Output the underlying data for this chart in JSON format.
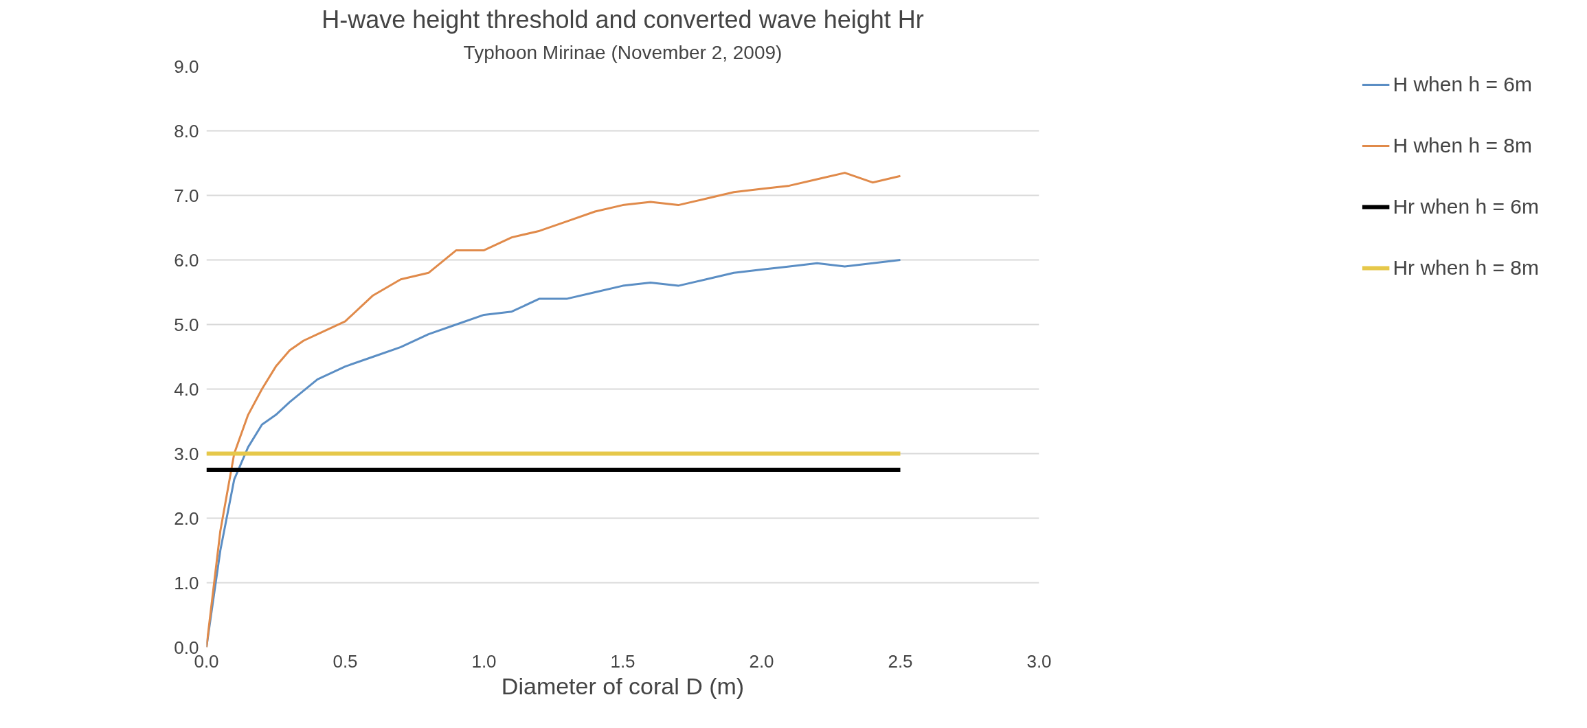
{
  "chart_data": {
    "type": "line",
    "title": "H-wave height threshold and converted wave height Hr",
    "subtitle": "Typhoon Mirinae (November 2, 2009)",
    "xlabel": "Diameter of coral D (m)",
    "xlim": [
      0,
      3
    ],
    "xticks": [
      {
        "value": 0,
        "label": "0.0"
      },
      {
        "value": 0.5,
        "label": "0.5"
      },
      {
        "value": 1,
        "label": "1.0"
      },
      {
        "value": 1.5,
        "label": "1.5"
      },
      {
        "value": 2,
        "label": "2.0"
      },
      {
        "value": 2.5,
        "label": "2.5"
      },
      {
        "value": 3,
        "label": "3.0"
      }
    ],
    "ylim": [
      0,
      9
    ],
    "yticks": [
      {
        "value": 0,
        "label": "0.0"
      },
      {
        "value": 1,
        "label": "1.0"
      },
      {
        "value": 2,
        "label": "2.0"
      },
      {
        "value": 3,
        "label": "3.0"
      },
      {
        "value": 4,
        "label": "4.0"
      },
      {
        "value": 5,
        "label": "5.0"
      },
      {
        "value": 6,
        "label": "6.0"
      },
      {
        "value": 7,
        "label": "7.0"
      },
      {
        "value": 8,
        "label": "8.0"
      },
      {
        "value": 9,
        "label": "9.0"
      }
    ],
    "grid": "y",
    "legend": "right",
    "marker": "none",
    "series": [
      {
        "name": "H when h = 6m",
        "color": "#5b8ec4",
        "x": [
          0,
          0.05,
          0.1,
          0.15,
          0.2,
          0.25,
          0.3,
          0.4,
          0.5,
          0.6,
          0.7,
          0.8,
          0.9,
          1.0,
          1.1,
          1.2,
          1.3,
          1.4,
          1.5,
          1.6,
          1.7,
          1.8,
          1.9,
          2.0,
          2.1,
          2.2,
          2.3,
          2.4,
          2.5
        ],
        "values": [
          0,
          1.5,
          2.6,
          3.1,
          3.45,
          3.6,
          3.8,
          4.15,
          4.35,
          4.5,
          4.65,
          4.85,
          5.0,
          5.15,
          5.2,
          5.4,
          5.4,
          5.5,
          5.6,
          5.65,
          5.6,
          5.7,
          5.8,
          5.85,
          5.9,
          5.95,
          5.9,
          5.95,
          6.0
        ]
      },
      {
        "name": "H when h = 8m",
        "color": "#e08a4a",
        "x": [
          0,
          0.05,
          0.1,
          0.15,
          0.2,
          0.25,
          0.3,
          0.35,
          0.4,
          0.5,
          0.6,
          0.7,
          0.8,
          0.9,
          1.0,
          1.1,
          1.2,
          1.3,
          1.4,
          1.5,
          1.6,
          1.7,
          1.8,
          1.9,
          2.0,
          2.1,
          2.2,
          2.3,
          2.4,
          2.5
        ],
        "values": [
          0,
          1.8,
          3.0,
          3.6,
          4.0,
          4.35,
          4.6,
          4.75,
          4.85,
          5.05,
          5.45,
          5.7,
          5.8,
          6.15,
          6.15,
          6.35,
          6.45,
          6.6,
          6.75,
          6.85,
          6.9,
          6.85,
          6.95,
          7.05,
          7.1,
          7.15,
          7.25,
          7.35,
          7.2,
          7.3
        ]
      },
      {
        "name": "Hr when h = 6m",
        "color": "#000000",
        "x": [
          0,
          2.5
        ],
        "values": [
          2.75,
          2.75
        ]
      },
      {
        "name": "Hr when h = 8m",
        "color": "#e6c84a",
        "x": [
          0,
          2.5
        ],
        "values": [
          3.0,
          3.0
        ]
      }
    ]
  }
}
